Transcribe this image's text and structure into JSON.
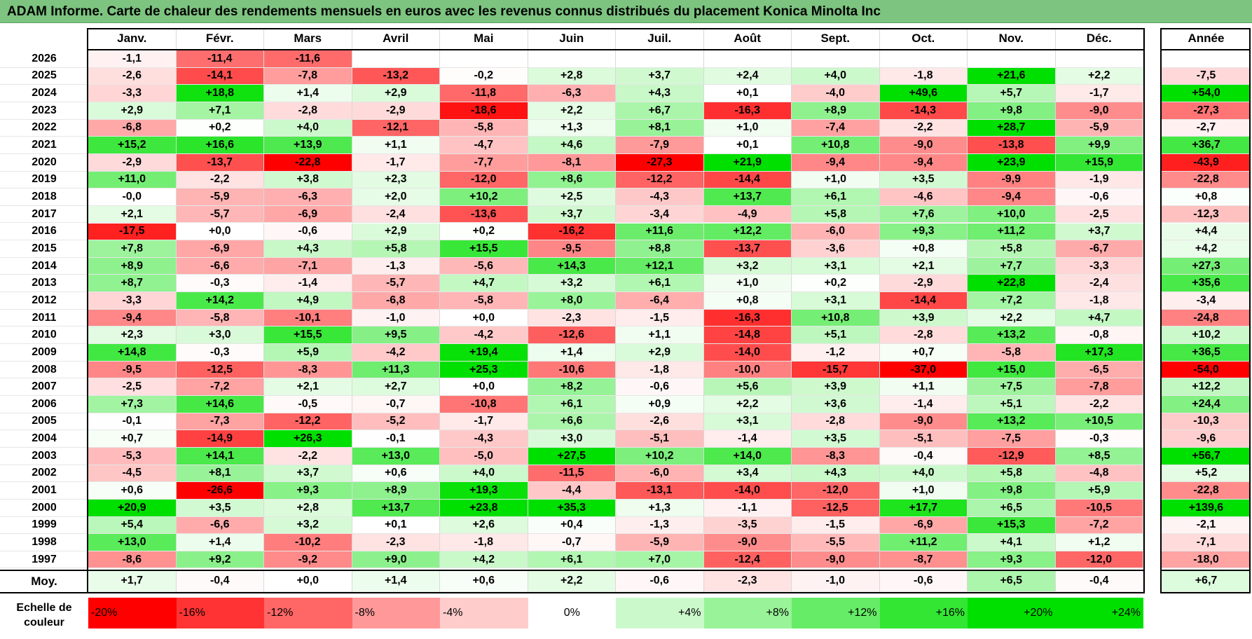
{
  "title": "ADAM Informe. Carte de chaleur des rendements mensuels en euros avec les revenus connus distribués du placement Konica Minolta Inc",
  "colors": {
    "title_bg": "#7cc47f",
    "negative_max": "#ff0000",
    "positive_max": "#00e000",
    "neutral": "#ffffff"
  },
  "chart_data": {
    "type": "heatmap",
    "title": "ADAM Informe. Carte de chaleur des rendements mensuels en euros avec les revenus connus distribués du placement Konica Minolta Inc",
    "months": [
      "Janv.",
      "Févr.",
      "Mars",
      "Avril",
      "Mai",
      "Juin",
      "Juil.",
      "Août",
      "Sept.",
      "Oct.",
      "Nov.",
      "Déc."
    ],
    "year_header": "Année",
    "rows": [
      {
        "year": "2026",
        "values": [
          "-1,1",
          "-11,4",
          "-11,6",
          "",
          "",
          "",
          "",
          "",
          "",
          "",
          "",
          ""
        ],
        "annual": ""
      },
      {
        "year": "2025",
        "values": [
          "-2,6",
          "-14,1",
          "-7,8",
          "-13,2",
          "-0,2",
          "+2,8",
          "+3,7",
          "+2,4",
          "+4,0",
          "-1,8",
          "+21,6",
          "+2,2"
        ],
        "annual": "-7,5"
      },
      {
        "year": "2024",
        "values": [
          "-3,3",
          "+18,8",
          "+1,4",
          "+2,9",
          "-11,8",
          "-6,3",
          "+4,3",
          "+0,1",
          "-4,0",
          "+49,6",
          "+5,7",
          "-1,7"
        ],
        "annual": "+54,0"
      },
      {
        "year": "2023",
        "values": [
          "+2,9",
          "+7,1",
          "-2,8",
          "-2,9",
          "-18,6",
          "+2,2",
          "+6,7",
          "-16,3",
          "+8,9",
          "-14,3",
          "+9,8",
          "-9,0"
        ],
        "annual": "-27,3"
      },
      {
        "year": "2022",
        "values": [
          "-6,8",
          "+0,2",
          "+4,0",
          "-12,1",
          "-5,8",
          "+1,3",
          "+8,1",
          "+1,0",
          "-7,4",
          "-2,2",
          "+28,7",
          "-5,9"
        ],
        "annual": "-2,7"
      },
      {
        "year": "2021",
        "values": [
          "+15,2",
          "+16,6",
          "+13,9",
          "+1,1",
          "-4,7",
          "+4,6",
          "-7,9",
          "+0,1",
          "+10,8",
          "-9,0",
          "-13,8",
          "+9,9"
        ],
        "annual": "+36,7"
      },
      {
        "year": "2020",
        "values": [
          "-2,9",
          "-13,7",
          "-22,8",
          "-1,7",
          "-7,7",
          "-8,1",
          "-27,3",
          "+21,9",
          "-9,4",
          "-9,4",
          "+23,9",
          "+15,9"
        ],
        "annual": "-43,9"
      },
      {
        "year": "2019",
        "values": [
          "+11,0",
          "-2,2",
          "+3,8",
          "+2,3",
          "-12,0",
          "+8,6",
          "-12,2",
          "-14,4",
          "+1,0",
          "+3,5",
          "-9,9",
          "-1,9"
        ],
        "annual": "-22,8"
      },
      {
        "year": "2018",
        "values": [
          "-0,0",
          "-5,9",
          "-6,3",
          "+2,0",
          "+10,2",
          "+2,5",
          "-4,3",
          "+13,7",
          "+6,1",
          "-4,6",
          "-9,4",
          "-0,6"
        ],
        "annual": "+0,8"
      },
      {
        "year": "2017",
        "values": [
          "+2,1",
          "-5,7",
          "-6,9",
          "-2,4",
          "-13,6",
          "+3,7",
          "-3,4",
          "-4,9",
          "+5,8",
          "+7,6",
          "+10,0",
          "-2,5"
        ],
        "annual": "-12,3"
      },
      {
        "year": "2016",
        "values": [
          "-17,5",
          "+0,0",
          "-0,6",
          "+2,9",
          "+0,2",
          "-16,2",
          "+11,6",
          "+12,2",
          "-6,0",
          "+9,3",
          "+11,2",
          "+3,7"
        ],
        "annual": "+4,4"
      },
      {
        "year": "2015",
        "values": [
          "+7,8",
          "-6,9",
          "+4,3",
          "+5,8",
          "+15,5",
          "-9,5",
          "+8,8",
          "-13,7",
          "-3,6",
          "+0,8",
          "+5,8",
          "-6,7"
        ],
        "annual": "+4,2"
      },
      {
        "year": "2014",
        "values": [
          "+8,9",
          "-6,6",
          "-7,1",
          "-1,3",
          "-5,6",
          "+14,3",
          "+12,1",
          "+3,2",
          "+3,1",
          "+2,1",
          "+7,7",
          "-3,3"
        ],
        "annual": "+27,3"
      },
      {
        "year": "2013",
        "values": [
          "+8,7",
          "-0,3",
          "-1,4",
          "-5,7",
          "+4,7",
          "+3,2",
          "+6,1",
          "+1,0",
          "+0,2",
          "-2,9",
          "+22,8",
          "-2,4"
        ],
        "annual": "+35,6"
      },
      {
        "year": "2012",
        "values": [
          "-3,3",
          "+14,2",
          "+4,9",
          "-6,8",
          "-5,8",
          "+8,0",
          "-6,4",
          "+0,8",
          "+3,1",
          "-14,4",
          "+7,2",
          "-1,8"
        ],
        "annual": "-3,4"
      },
      {
        "year": "2011",
        "values": [
          "-9,4",
          "-5,8",
          "-10,1",
          "-1,0",
          "+0,0",
          "-2,3",
          "-1,5",
          "-16,3",
          "+10,8",
          "+3,9",
          "+2,2",
          "+4,7"
        ],
        "annual": "-24,8"
      },
      {
        "year": "2010",
        "values": [
          "+2,3",
          "+3,0",
          "+15,5",
          "+9,5",
          "-4,2",
          "-12,6",
          "+1,1",
          "-14,8",
          "+5,1",
          "-2,8",
          "+13,2",
          "-0,8"
        ],
        "annual": "+10,2"
      },
      {
        "year": "2009",
        "values": [
          "+14,8",
          "-0,3",
          "+5,9",
          "-4,2",
          "+19,4",
          "+1,4",
          "+2,9",
          "-14,0",
          "-1,2",
          "+0,7",
          "-5,8",
          "+17,3"
        ],
        "annual": "+36,5"
      },
      {
        "year": "2008",
        "values": [
          "-9,5",
          "-12,5",
          "-8,3",
          "+11,3",
          "+25,3",
          "-10,6",
          "-1,8",
          "-10,0",
          "-15,7",
          "-37,0",
          "+15,0",
          "-6,5"
        ],
        "annual": "-54,0"
      },
      {
        "year": "2007",
        "values": [
          "-2,5",
          "-7,2",
          "+2,1",
          "+2,7",
          "+0,0",
          "+8,2",
          "-0,6",
          "+5,6",
          "+3,9",
          "+1,1",
          "+7,5",
          "-7,8"
        ],
        "annual": "+12,2"
      },
      {
        "year": "2006",
        "values": [
          "+7,3",
          "+14,6",
          "-0,5",
          "-0,7",
          "-10,8",
          "+6,1",
          "+0,9",
          "+2,2",
          "+3,6",
          "-1,4",
          "+5,1",
          "-2,2"
        ],
        "annual": "+24,4"
      },
      {
        "year": "2005",
        "values": [
          "-0,1",
          "-7,3",
          "-12,2",
          "-5,2",
          "-1,7",
          "+6,6",
          "-2,6",
          "+3,1",
          "-2,8",
          "-9,0",
          "+13,2",
          "+10,5"
        ],
        "annual": "-10,3"
      },
      {
        "year": "2004",
        "values": [
          "+0,7",
          "-14,9",
          "+26,3",
          "-0,1",
          "-4,3",
          "+3,0",
          "-5,1",
          "-1,4",
          "+3,5",
          "-5,1",
          "-7,5",
          "-0,3"
        ],
        "annual": "-9,6"
      },
      {
        "year": "2003",
        "values": [
          "-5,3",
          "+14,1",
          "-2,2",
          "+13,0",
          "-5,0",
          "+27,5",
          "+10,2",
          "+14,0",
          "-8,3",
          "-0,4",
          "-12,9",
          "+8,5"
        ],
        "annual": "+56,7"
      },
      {
        "year": "2002",
        "values": [
          "-4,5",
          "+8,1",
          "+3,7",
          "+0,6",
          "+4,0",
          "-11,5",
          "-6,0",
          "+3,4",
          "+4,3",
          "+4,0",
          "+5,8",
          "-4,8"
        ],
        "annual": "+5,2"
      },
      {
        "year": "2001",
        "values": [
          "+0,6",
          "-26,6",
          "+9,3",
          "+8,9",
          "+19,3",
          "-4,4",
          "-13,1",
          "-14,0",
          "-12,0",
          "+1,0",
          "+9,8",
          "+5,9"
        ],
        "annual": "-22,8"
      },
      {
        "year": "2000",
        "values": [
          "+20,9",
          "+3,5",
          "+2,8",
          "+13,7",
          "+23,8",
          "+35,3",
          "+1,3",
          "-1,1",
          "-12,5",
          "+17,7",
          "+6,5",
          "-10,5"
        ],
        "annual": "+139,6"
      },
      {
        "year": "1999",
        "values": [
          "+5,4",
          "-6,6",
          "+3,2",
          "+0,1",
          "+2,6",
          "+0,4",
          "-1,3",
          "-3,5",
          "-1,5",
          "-6,9",
          "+15,3",
          "-7,2"
        ],
        "annual": "-2,1"
      },
      {
        "year": "1998",
        "values": [
          "+13,0",
          "+1,4",
          "-10,2",
          "-2,3",
          "-1,8",
          "-0,7",
          "-5,9",
          "-9,0",
          "-5,5",
          "+11,2",
          "+4,1",
          "+1,2"
        ],
        "annual": "-7,1"
      },
      {
        "year": "1997",
        "values": [
          "-8,6",
          "+9,2",
          "-9,2",
          "+9,0",
          "+4,2",
          "+6,1",
          "+7,0",
          "-12,4",
          "-9,0",
          "-8,7",
          "+9,3",
          "-12,0"
        ],
        "annual": "-18,0"
      }
    ],
    "average": {
      "label": "Moy.",
      "values": [
        "+1,7",
        "-0,4",
        "+0,0",
        "+1,4",
        "+0,6",
        "+2,2",
        "-0,6",
        "-2,3",
        "-1,0",
        "-0,6",
        "+6,5",
        "-0,4"
      ],
      "annual": "+6,7"
    },
    "legend": {
      "label_line1": "Echelle de",
      "label_line2": "couleur",
      "steps": [
        {
          "label": "-20%",
          "value": -20
        },
        {
          "label": "-16%",
          "value": -16
        },
        {
          "label": "-12%",
          "value": -12
        },
        {
          "label": "-8%",
          "value": -8
        },
        {
          "label": "-4%",
          "value": -4
        },
        {
          "label": "0%",
          "value": 0
        },
        {
          "label": "+4%",
          "value": 4
        },
        {
          "label": "+8%",
          "value": 8
        },
        {
          "label": "+12%",
          "value": 12
        },
        {
          "label": "+16%",
          "value": 16
        },
        {
          "label": "+20%",
          "value": 20
        },
        {
          "label": "+24%",
          "value": 24
        }
      ]
    }
  }
}
